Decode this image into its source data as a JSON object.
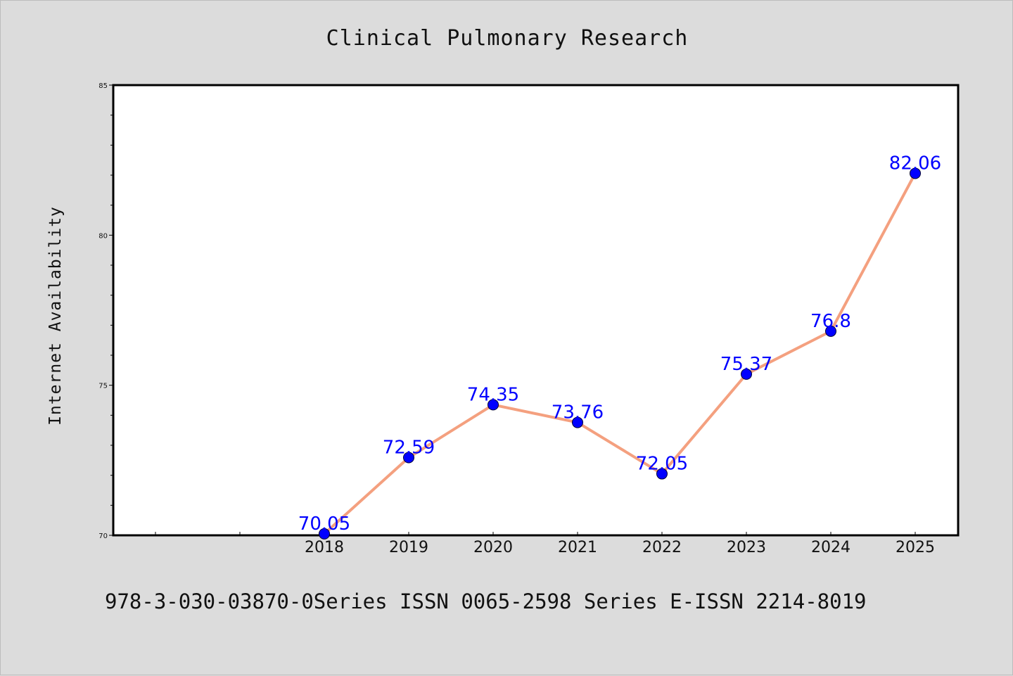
{
  "chart_data": {
    "type": "line",
    "title": "Clinical Pulmonary Research",
    "xlabel": "",
    "ylabel": "Internet Availability",
    "categories": [
      "2018",
      "2019",
      "2020",
      "2021",
      "2022",
      "2023",
      "2024",
      "2025"
    ],
    "values": [
      70.05,
      72.59,
      74.35,
      73.76,
      72.05,
      75.37,
      76.8,
      82.06
    ],
    "value_labels": [
      "70.05",
      "72.59",
      "74.35",
      "73.76",
      "72.05",
      "75.37",
      "76.8",
      "82.06"
    ],
    "ylim": [
      70,
      85
    ],
    "yticks": [
      "70",
      "75",
      "80",
      "85"
    ],
    "line_color": "#f4a07f",
    "marker_color": "#0000ff",
    "label_color": "#0000ff",
    "grid": false,
    "legend": "none"
  },
  "footer": "978-3-030-03870-0Series ISSN 0065-2598 Series E-ISSN 2214-8019",
  "colors": {
    "background": "#dcdcdc",
    "plot_background": "#ffffff"
  }
}
